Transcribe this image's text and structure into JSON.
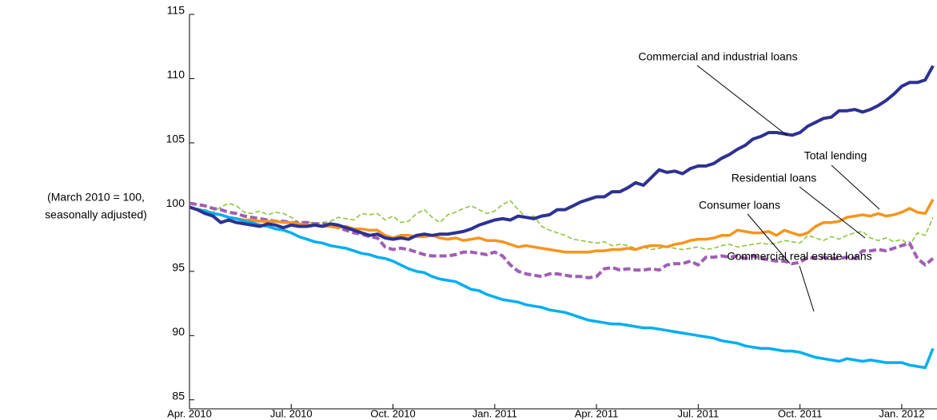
{
  "chart_data": {
    "type": "line",
    "y_label": [
      "(March 2010 = 100,",
      "seasonally adjusted)"
    ],
    "categories": [
      "Apr. 2010",
      null,
      null,
      null,
      null,
      null,
      null,
      null,
      null,
      null,
      null,
      null,
      null,
      "Jul. 2010",
      null,
      null,
      null,
      null,
      null,
      null,
      null,
      null,
      null,
      null,
      null,
      null,
      "Oct. 2010",
      null,
      null,
      null,
      null,
      null,
      null,
      null,
      null,
      null,
      null,
      null,
      null,
      "Jan. 2011",
      null,
      null,
      null,
      null,
      null,
      null,
      null,
      null,
      null,
      null,
      null,
      null,
      "Apr. 2011",
      null,
      null,
      null,
      null,
      null,
      null,
      null,
      null,
      null,
      null,
      null,
      null,
      "Jul. 2011",
      null,
      null,
      null,
      null,
      null,
      null,
      null,
      null,
      null,
      null,
      null,
      null,
      "Oct. 2011",
      null,
      null,
      null,
      null,
      null,
      null,
      null,
      null,
      null,
      null,
      null,
      null,
      "Jan. 2012",
      null,
      null,
      null,
      null
    ],
    "ylim": [
      84.3,
      115
    ],
    "yticks": [
      85,
      90,
      95,
      100,
      105,
      110,
      115
    ],
    "series": [
      {
        "name": "Residential loans",
        "color": "#8dc63f",
        "style": "dashed-thin",
        "values": [
          100,
          99.9,
          99.8,
          99.6,
          100.0,
          100.3,
          100.1,
          99.6,
          99.5,
          99.7,
          99.4,
          99.6,
          99.5,
          99.2,
          98.8,
          98.9,
          98.7,
          98.8,
          98.9,
          99.2,
          99.1,
          99.0,
          99.5,
          99.4,
          99.5,
          99.0,
          99.3,
          98.8,
          98.9,
          99.5,
          99.8,
          99.2,
          98.8,
          99.4,
          99.6,
          99.9,
          100.1,
          99.8,
          99.5,
          99.7,
          100.2,
          100.5,
          99.8,
          99.2,
          99.3,
          98.5,
          98.2,
          98.0,
          97.8,
          97.5,
          97.4,
          97.3,
          97.2,
          97.3,
          97.0,
          97.1,
          97.0,
          96.8,
          96.9,
          96.7,
          96.8,
          96.9,
          96.8,
          96.7,
          96.8,
          96.9,
          96.7,
          96.8,
          97.0,
          97.1,
          96.9,
          97.0,
          97.1,
          97.2,
          97.1,
          97.2,
          97.4,
          97.3,
          97.2,
          97.8,
          97.6,
          97.4,
          97.7,
          97.5,
          97.8,
          98.0,
          98.1,
          97.6,
          97.4,
          97.6,
          97.3,
          97.5,
          97.0,
          98.0,
          97.8,
          99.2
        ]
      },
      {
        "name": "Consumer loans",
        "color": "#a05eb5",
        "style": "dashed-thick",
        "values": [
          100.3,
          100.2,
          100.1,
          99.9,
          99.8,
          99.6,
          99.5,
          99.3,
          99.2,
          99.1,
          99.0,
          98.9,
          98.9,
          98.8,
          98.8,
          98.8,
          98.7,
          98.7,
          98.6,
          98.4,
          98.2,
          98.0,
          97.9,
          97.7,
          97.6,
          96.9,
          96.7,
          96.8,
          96.7,
          96.5,
          96.3,
          96.2,
          96.2,
          96.2,
          96.3,
          96.5,
          96.5,
          96.4,
          96.3,
          96.5,
          96.2,
          95.5,
          95.0,
          94.8,
          94.7,
          94.6,
          94.8,
          94.8,
          94.7,
          94.6,
          94.6,
          94.5,
          94.6,
          95.2,
          95.3,
          95.1,
          95.2,
          95.1,
          95.1,
          95.2,
          95.1,
          95.5,
          95.6,
          95.6,
          95.8,
          95.5,
          96.1,
          96.1,
          96.2,
          96.1,
          96.2,
          96.0,
          96.2,
          96.0,
          95.9,
          95.8,
          95.8,
          95.6,
          95.7,
          96.1,
          96.0,
          96.1,
          96.0,
          96.0,
          96.1,
          96.0,
          96.6,
          96.6,
          96.7,
          96.6,
          96.8,
          97.0,
          97.2,
          96.0,
          95.5,
          96.0
        ]
      },
      {
        "name": "Total lending",
        "color": "#f7941d",
        "style": "solid",
        "values": [
          100,
          99.8,
          99.7,
          99.5,
          99.4,
          99.2,
          99.1,
          99.0,
          99.0,
          98.9,
          98.9,
          98.9,
          98.8,
          98.8,
          98.7,
          98.6,
          98.6,
          98.5,
          98.5,
          98.4,
          98.5,
          98.3,
          98.3,
          98.2,
          98.2,
          97.8,
          97.6,
          97.8,
          97.8,
          97.7,
          97.7,
          97.8,
          97.6,
          97.5,
          97.6,
          97.4,
          97.5,
          97.6,
          97.4,
          97.4,
          97.3,
          97.1,
          96.9,
          97.0,
          96.9,
          96.8,
          96.7,
          96.6,
          96.5,
          96.5,
          96.5,
          96.5,
          96.6,
          96.6,
          96.7,
          96.7,
          96.8,
          96.7,
          96.9,
          97.0,
          97.0,
          96.9,
          97.1,
          97.2,
          97.4,
          97.5,
          97.5,
          97.6,
          97.8,
          97.8,
          98.2,
          98.1,
          98.0,
          98.0,
          98.1,
          97.8,
          98.2,
          98.0,
          97.8,
          98.0,
          98.5,
          98.8,
          98.8,
          98.9,
          99.2,
          99.3,
          99.4,
          99.3,
          99.5,
          99.3,
          99.4,
          99.6,
          99.9,
          99.6,
          99.5,
          100.6
        ]
      },
      {
        "name": "Commercial real estate loans",
        "color": "#00aeef",
        "style": "solid",
        "values": [
          100,
          99.8,
          99.7,
          99.5,
          99.4,
          99.2,
          99.1,
          98.9,
          98.8,
          98.6,
          98.5,
          98.3,
          98.2,
          98.0,
          97.7,
          97.5,
          97.3,
          97.2,
          97.0,
          96.9,
          96.8,
          96.6,
          96.4,
          96.3,
          96.1,
          96.0,
          95.8,
          95.5,
          95.2,
          95.0,
          94.9,
          94.6,
          94.4,
          94.3,
          94.2,
          93.9,
          93.6,
          93.5,
          93.2,
          93.0,
          92.8,
          92.7,
          92.6,
          92.4,
          92.3,
          92.2,
          92.0,
          91.9,
          91.8,
          91.6,
          91.4,
          91.2,
          91.1,
          91.0,
          90.9,
          90.9,
          90.8,
          90.7,
          90.6,
          90.6,
          90.5,
          90.4,
          90.3,
          90.2,
          90.1,
          90.0,
          89.9,
          89.8,
          89.6,
          89.5,
          89.4,
          89.2,
          89.1,
          89.0,
          89.0,
          88.9,
          88.8,
          88.8,
          88.7,
          88.5,
          88.3,
          88.2,
          88.1,
          88.0,
          88.2,
          88.1,
          88.0,
          88.1,
          88.0,
          87.9,
          87.9,
          87.9,
          87.7,
          87.6,
          87.5,
          89.0
        ]
      },
      {
        "name": "Commercial and industrial loans",
        "color": "#2e3192",
        "style": "solid-thick",
        "values": [
          100,
          99.8,
          99.5,
          99.3,
          98.8,
          99.0,
          98.8,
          98.7,
          98.6,
          98.5,
          98.7,
          98.6,
          98.4,
          98.6,
          98.5,
          98.5,
          98.6,
          98.5,
          98.7,
          98.6,
          98.4,
          98.2,
          98.0,
          97.8,
          97.9,
          97.6,
          97.5,
          97.6,
          97.5,
          97.8,
          97.9,
          97.8,
          97.9,
          97.9,
          98.0,
          98.1,
          98.3,
          98.6,
          98.8,
          99.0,
          99.1,
          99.0,
          99.3,
          99.2,
          99.1,
          99.3,
          99.4,
          99.8,
          99.8,
          100.1,
          100.4,
          100.6,
          100.8,
          100.8,
          101.2,
          101.2,
          101.5,
          101.9,
          101.7,
          102.3,
          102.9,
          102.7,
          102.8,
          102.6,
          103.0,
          103.2,
          103.2,
          103.4,
          103.8,
          104.1,
          104.5,
          104.8,
          105.3,
          105.5,
          105.8,
          105.8,
          105.7,
          105.6,
          105.8,
          106.3,
          106.6,
          106.9,
          107.0,
          107.5,
          107.5,
          107.6,
          107.4,
          107.6,
          107.9,
          108.3,
          108.8,
          109.4,
          109.7,
          109.7,
          109.9,
          111.0
        ]
      }
    ]
  }
}
